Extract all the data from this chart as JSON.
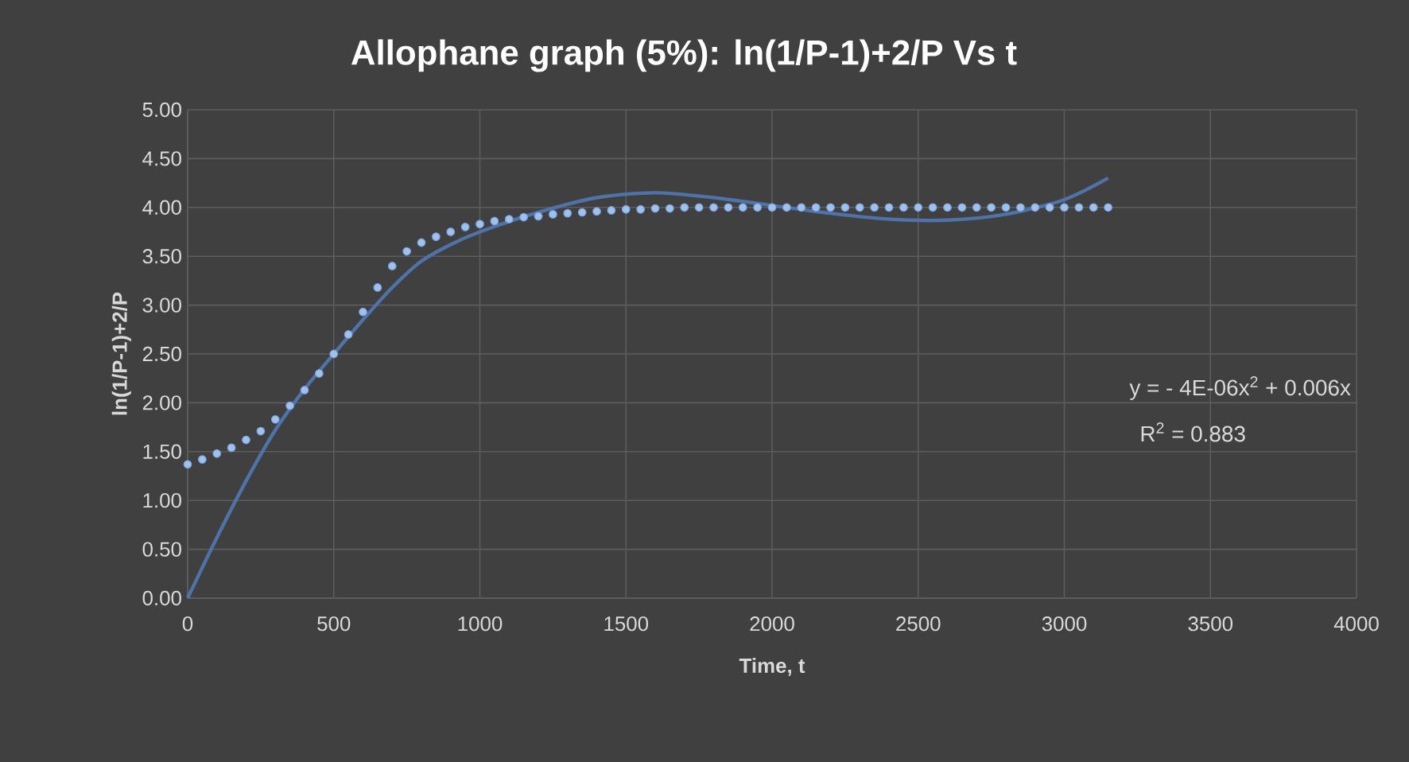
{
  "chart_data": {
    "type": "scatter",
    "title": "Allophane graph (5%): ln(1/P-1)+2/P Vs t",
    "xlabel": "Time, t",
    "ylabel": "ln(1/P-1)+2/P",
    "annotations": [
      "y =  - 4E-06x$^{2}$ + 0.006x",
      "R$^{2}$ = 0.883"
    ],
    "xlim": [
      0,
      4000
    ],
    "ylim": [
      0,
      5
    ],
    "xticks": [
      0,
      500,
      1000,
      1500,
      2000,
      2500,
      3000,
      3500,
      4000
    ],
    "yticks": [
      {
        "value": 0,
        "label": "0.00"
      },
      {
        "value": 0.5,
        "label": "0.50"
      },
      {
        "value": 1,
        "label": "1.00"
      },
      {
        "value": 1.5,
        "label": "1.50"
      },
      {
        "value": 2,
        "label": "2.00"
      },
      {
        "value": 2.5,
        "label": "2.50"
      },
      {
        "value": 3,
        "label": "3.00"
      },
      {
        "value": 3.5,
        "label": "3.50"
      },
      {
        "value": 4,
        "label": "4.00"
      },
      {
        "value": 4.5,
        "label": "4.50"
      },
      {
        "value": 5,
        "label": "5.00"
      }
    ],
    "grid": true,
    "series": [
      {
        "marker": "circle",
        "color": "#9dc3e6",
        "x": [
          0,
          50,
          100,
          150,
          200,
          250,
          300,
          350,
          400,
          450,
          500,
          550,
          600,
          650,
          700,
          750,
          800,
          850,
          900,
          950,
          1000,
          1050,
          1100,
          1150,
          1200,
          1250,
          1300,
          1350,
          1400,
          1450,
          1500,
          1550,
          1600,
          1650,
          1700,
          1750,
          1800,
          1850,
          1900,
          1950,
          2000,
          2050,
          2100,
          2150,
          2200,
          2250,
          2300,
          2350,
          2400,
          2450,
          2500,
          2550,
          2600,
          2650,
          2700,
          2750,
          2800,
          2850,
          2900,
          2950,
          3000,
          3050,
          3100,
          3150
        ],
        "values": [
          1.37,
          1.42,
          1.48,
          1.54,
          1.62,
          1.71,
          1.83,
          1.97,
          2.13,
          2.3,
          2.5,
          2.7,
          2.93,
          3.18,
          3.4,
          3.55,
          3.64,
          3.7,
          3.75,
          3.8,
          3.83,
          3.86,
          3.88,
          3.9,
          3.91,
          3.93,
          3.94,
          3.95,
          3.96,
          3.97,
          3.98,
          3.98,
          3.99,
          3.99,
          4.0,
          4.0,
          4.0,
          4.0,
          4.0,
          4.0,
          4.0,
          4.0,
          4.0,
          4.0,
          4.0,
          4.0,
          4.0,
          4.0,
          4.0,
          4.0,
          4.0,
          4.0,
          4.0,
          4.0,
          4.0,
          4.0,
          4.0,
          4.0,
          4.0,
          4.0,
          4.0,
          4.0,
          4.0,
          4.0
        ]
      },
      {
        "type": "line",
        "marker": "none",
        "color": "#4f73a8",
        "x": [
          0,
          100,
          200,
          300,
          400,
          500,
          600,
          700,
          800,
          900,
          1000,
          1200,
          1400,
          1600,
          1800,
          2000,
          2200,
          2400,
          2600,
          2800,
          3000,
          3150
        ],
        "values": [
          0,
          0.62,
          1.2,
          1.72,
          2.14,
          2.5,
          2.85,
          3.18,
          3.45,
          3.62,
          3.75,
          3.95,
          4.1,
          4.15,
          4.1,
          4.02,
          3.94,
          3.88,
          3.87,
          3.93,
          4.08,
          4.3
        ]
      }
    ]
  }
}
